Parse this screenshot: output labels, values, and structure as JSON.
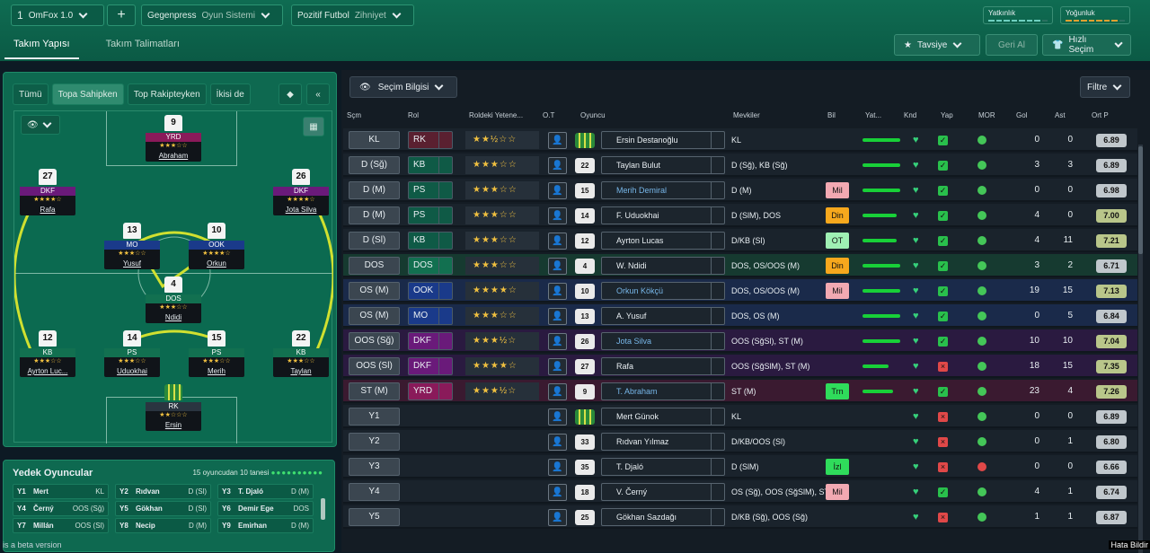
{
  "topbar": {
    "tactic_number": "1",
    "tactic_name": "OmFox 1.0",
    "plus": "+",
    "system_value": "Gegenpress",
    "system_label": "Oyun Sistemi",
    "mentality_value": "Pozitif Futbol",
    "mentality_label": "Zihniyet",
    "meter1": "Yatkınlık",
    "meter2": "Yoğunluk"
  },
  "tabs": {
    "t1": "Takım Yapısı",
    "t2": "Takım Talimatları"
  },
  "actions": {
    "tavsiye": "Tavsiye",
    "geri_al": "Geri Al",
    "hizli_secim": "Hızlı Seçim"
  },
  "filters": {
    "f1": "Tümü",
    "f2": "Topa Sahipken",
    "f3": "Top Rakipteyken",
    "f4": "İkisi de"
  },
  "pitch_players": [
    {
      "num": "9",
      "role": "YRD",
      "stars": "★★★☆☆",
      "name": "Abraham",
      "color": "#8a1a5a"
    },
    {
      "num": "27",
      "role": "DKF",
      "stars": "★★★★☆",
      "name": "Rafa",
      "color": "#6a1a7a"
    },
    {
      "num": "26",
      "role": "DKF",
      "stars": "★★★★☆",
      "name": "Jota Silva",
      "color": "#6a1a7a"
    },
    {
      "num": "13",
      "role": "MO",
      "stars": "★★★☆☆",
      "name": "Yusuf",
      "color": "#1a3a8a"
    },
    {
      "num": "10",
      "role": "OOK",
      "stars": "★★★★☆",
      "name": "Orkun",
      "color": "#1a3a8a"
    },
    {
      "num": "4",
      "role": "DOS",
      "stars": "★★★☆☆",
      "name": "Ndidi",
      "color": "#127050"
    },
    {
      "num": "12",
      "role": "KB",
      "stars": "★★★☆☆",
      "name": "Ayrton Luc...",
      "color": "#127050"
    },
    {
      "num": "14",
      "role": "PS",
      "stars": "★★★☆☆",
      "name": "Uduokhai",
      "color": "#127050"
    },
    {
      "num": "15",
      "role": "PS",
      "stars": "★★★☆☆",
      "name": "Merih",
      "color": "#127050"
    },
    {
      "num": "22",
      "role": "KB",
      "stars": "★★★☆☆",
      "name": "Taylan",
      "color": "#127050"
    },
    {
      "num": "",
      "role": "RK",
      "stars": "★★☆☆☆",
      "name": "Ersin",
      "color": "#2a3540"
    }
  ],
  "bench": {
    "title": "Yedek Oyuncular",
    "count": "15 oyuncudan 10 tanesi",
    "items": [
      {
        "p": "Y1",
        "n": "Mert",
        "r": "KL"
      },
      {
        "p": "Y2",
        "n": "Rıdvan",
        "r": "D (Sl)"
      },
      {
        "p": "Y3",
        "n": "T. Djaló",
        "r": "D (M)"
      },
      {
        "p": "Y4",
        "n": "Černý",
        "r": "OOS (Sğ)"
      },
      {
        "p": "Y5",
        "n": "Gökhan",
        "r": "D (Sl)"
      },
      {
        "p": "Y6",
        "n": "Demir Ege",
        "r": "DOS"
      },
      {
        "p": "Y7",
        "n": "Millán",
        "r": "OOS (Sl)"
      },
      {
        "p": "Y8",
        "n": "Necip",
        "r": "D (M)"
      },
      {
        "p": "Y9",
        "n": "Emirhan",
        "r": "D (M)"
      }
    ]
  },
  "sel_info": "Seçim Bilgisi",
  "filtre": "Filtre",
  "headers": {
    "scm": "Sçm",
    "rol": "Rol",
    "yet": "Roldeki Yetene...",
    "ot": "O.T",
    "oyuncu": "Oyuncu",
    "mevkiler": "Mevkiler",
    "bil": "Bil",
    "yat": "Yat...",
    "knd": "Knd",
    "yap": "Yap",
    "mor": "MOR",
    "gol": "Gol",
    "ast": "Ast",
    "ort": "Ort P"
  },
  "rows": [
    {
      "pos": "KL",
      "role": "RK",
      "stars": "★★½☆☆",
      "kit": "1",
      "name": "Ersin Destanoğlu",
      "mev": "KL",
      "bil": "",
      "yat": 1.0,
      "gol": "0",
      "ast": "0",
      "ort": "6.89",
      "roleColor": "#5a2030",
      "bg": "#1a232c",
      "named": false
    },
    {
      "pos": "D (Sğ)",
      "role": "KB",
      "stars": "★★★☆☆",
      "kit": "22",
      "name": "Taylan Bulut",
      "mev": "D (Sğ), KB (Sğ)",
      "bil": "",
      "yat": 1.0,
      "gol": "3",
      "ast": "3",
      "ort": "6.89",
      "roleColor": "#0f5a46",
      "bg": "#1a232c",
      "named": false
    },
    {
      "pos": "D (M)",
      "role": "PS",
      "stars": "★★★☆☆",
      "kit": "15",
      "name": "Merih Demiral",
      "mev": "D (M)",
      "bil": "Mil",
      "bilc": "a",
      "yat": 1.0,
      "gol": "0",
      "ast": "0",
      "ort": "6.98",
      "roleColor": "#0f5a46",
      "bg": "#1a232c",
      "named": true
    },
    {
      "pos": "D (M)",
      "role": "PS",
      "stars": "★★★☆☆",
      "kit": "14",
      "name": "F. Uduokhai",
      "mev": "D (SlM), DOS",
      "bil": "Din",
      "bilc": "b",
      "yat": 0.9,
      "gol": "4",
      "ast": "0",
      "ort": "7.00",
      "roleColor": "#0f5a46",
      "bg": "#1a232c",
      "named": false
    },
    {
      "pos": "D (Sl)",
      "role": "KB",
      "stars": "★★★☆☆",
      "kit": "12",
      "name": "Ayrton Lucas",
      "mev": "D/KB (Sl)",
      "bil": "OT",
      "bilc": "c",
      "yat": 0.9,
      "gol": "4",
      "ast": "11",
      "ort": "7.21",
      "roleColor": "#0f5a46",
      "bg": "#1a232c",
      "named": false
    },
    {
      "pos": "DOS",
      "role": "DOS",
      "stars": "★★★☆☆",
      "kit": "4",
      "name": "W. Ndidi",
      "mev": "DOS, OS/OOS (M)",
      "bil": "Din",
      "bilc": "b",
      "yat": 1.0,
      "gol": "3",
      "ast": "2",
      "ort": "6.71",
      "roleColor": "#127050",
      "bg": "#163a30",
      "named": false
    },
    {
      "pos": "OS (M)",
      "role": "OOK",
      "stars": "★★★★☆",
      "kit": "10",
      "name": "Orkun Kökçü",
      "mev": "DOS, OS/OOS (M)",
      "bil": "Mil",
      "bilc": "a",
      "yat": 1.0,
      "gol": "19",
      "ast": "15",
      "ort": "7.13",
      "roleColor": "#1a3a8a",
      "bg": "#1a2a4a",
      "named": true
    },
    {
      "pos": "OS (M)",
      "role": "MO",
      "stars": "★★★☆☆",
      "kit": "13",
      "name": "A. Yusuf",
      "mev": "DOS, OS (M)",
      "bil": "",
      "yat": 1.0,
      "gol": "0",
      "ast": "5",
      "ort": "6.84",
      "roleColor": "#1a3a8a",
      "bg": "#1a2a4a",
      "named": false
    },
    {
      "pos": "OOS (Sğ)",
      "role": "DKF",
      "stars": "★★★½☆",
      "kit": "26",
      "name": "Jota Silva",
      "mev": "OOS (SğSl), ST (M)",
      "bil": "",
      "yat": 1.0,
      "gol": "10",
      "ast": "10",
      "ort": "7.04",
      "roleColor": "#6a1a7a",
      "bg": "#2a1a40",
      "named": true
    },
    {
      "pos": "OOS (Sl)",
      "role": "DKF",
      "stars": "★★★★☆",
      "kit": "27",
      "name": "Rafa",
      "mev": "OOS (SğSlM), ST (M)",
      "bil": "",
      "yat": 0.7,
      "gol": "18",
      "ast": "15",
      "ort": "7.35",
      "roleColor": "#6a1a7a",
      "bg": "#2a1a40",
      "named": false
    },
    {
      "pos": "ST (M)",
      "role": "YRD",
      "stars": "★★★½☆",
      "kit": "9",
      "name": "T. Abraham",
      "mev": "ST (M)",
      "bil": "Trn",
      "bilc": "d",
      "yat": 0.8,
      "gol": "23",
      "ast": "4",
      "ort": "7.26",
      "roleColor": "#8a1a5a",
      "bg": "#3a1a30",
      "named": true
    },
    {
      "pos": "Y1",
      "role": "",
      "stars": "",
      "kit": "1",
      "name": "Mert Günok",
      "mev": "KL",
      "bil": "",
      "yat": 0,
      "gol": "0",
      "ast": "0",
      "ort": "6.89",
      "roleColor": "",
      "bg": "#1a232c",
      "named": false
    },
    {
      "pos": "Y2",
      "role": "",
      "stars": "",
      "kit": "33",
      "name": "Rıdvan Yılmaz",
      "mev": "D/KB/OOS (Sl)",
      "bil": "",
      "yat": 0,
      "gol": "0",
      "ast": "1",
      "ort": "6.80",
      "roleColor": "",
      "bg": "#1a232c",
      "named": false
    },
    {
      "pos": "Y3",
      "role": "",
      "stars": "",
      "kit": "35",
      "name": "T. Djaló",
      "mev": "D (SlM)",
      "bil": "İzl",
      "bilc": "d",
      "yat": 0,
      "gol": "0",
      "ast": "0",
      "ort": "6.66",
      "roleColor": "",
      "bg": "#1a232c",
      "named": false
    },
    {
      "pos": "Y4",
      "role": "",
      "stars": "",
      "kit": "18",
      "name": "V. Černý",
      "mev": "OS (Sğ), OOS (SğSlM), ST ...",
      "bil": "Mil",
      "bilc": "a",
      "yat": 0,
      "gol": "4",
      "ast": "1",
      "ort": "6.74",
      "roleColor": "",
      "bg": "#1a232c",
      "named": false
    },
    {
      "pos": "Y5",
      "role": "",
      "stars": "",
      "kit": "25",
      "name": "Gökhan Sazdağı",
      "mev": "D/KB (Sğ), OOS (Sğ)",
      "bil": "",
      "yat": 0,
      "gol": "1",
      "ast": "1",
      "ort": "6.87",
      "roleColor": "",
      "bg": "#1a232c",
      "named": false
    }
  ],
  "footer": "is a beta version",
  "footer_right": "Hata Bildir"
}
